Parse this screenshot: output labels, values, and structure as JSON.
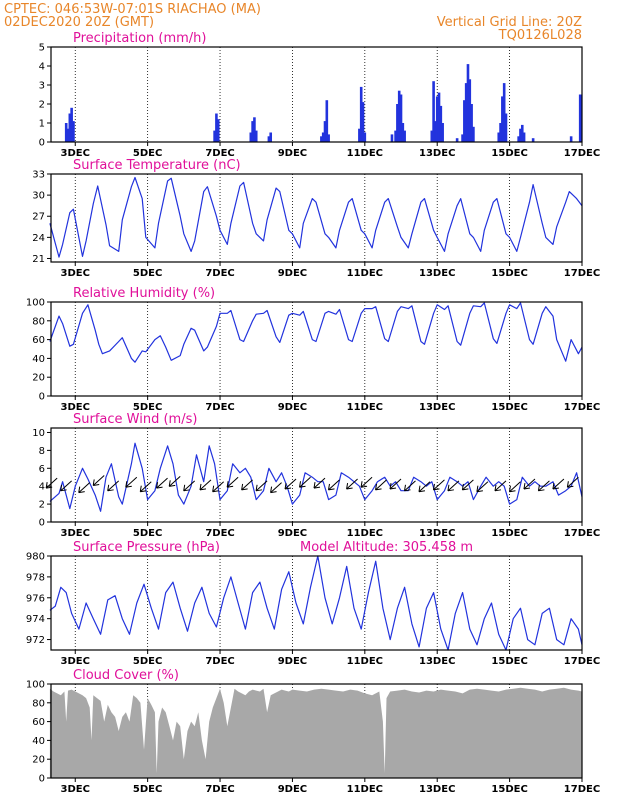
{
  "header": {
    "station_line": "CPTEC:   046:53W-07:01S   RIACHAO (MA)",
    "date_line": "02DEC2020 20Z (GMT)",
    "grid_note": "Vertical Grid Line: 20Z",
    "run_code": "TQ0126L028"
  },
  "colors": {
    "header": "#e8862a",
    "title": "#e0109a",
    "series": "#2233dd",
    "cloud": "#a8a8a8",
    "wind": "#000000"
  },
  "x_axis": {
    "tick_labels": [
      "3DEC",
      "5DEC",
      "7DEC",
      "9DEC",
      "11DEC",
      "13DEC",
      "15DEC",
      "17DEC"
    ],
    "tick_days": [
      3,
      5,
      7,
      9,
      11,
      13,
      15,
      17
    ],
    "day_start": 2.33,
    "day_end": 17.0
  },
  "chart_data": [
    {
      "id": "precip",
      "type": "bar",
      "title": "Precipitation (mm/h)",
      "ylim": [
        0,
        5
      ],
      "yticks": [
        0,
        1,
        2,
        3,
        4,
        5
      ],
      "grid": "dotted-vertical",
      "bars": [
        [
          2.75,
          1.0
        ],
        [
          2.8,
          0.7
        ],
        [
          2.85,
          1.5
        ],
        [
          2.9,
          1.8
        ],
        [
          2.95,
          1.1
        ],
        [
          6.85,
          0.6
        ],
        [
          6.9,
          1.5
        ],
        [
          6.95,
          1.2
        ],
        [
          7.85,
          0.5
        ],
        [
          7.9,
          1.1
        ],
        [
          7.95,
          1.3
        ],
        [
          8.0,
          0.6
        ],
        [
          8.35,
          0.3
        ],
        [
          8.4,
          0.5
        ],
        [
          9.8,
          0.3
        ],
        [
          9.85,
          0.5
        ],
        [
          9.9,
          1.1
        ],
        [
          9.95,
          2.2
        ],
        [
          10.0,
          0.4
        ],
        [
          10.85,
          0.7
        ],
        [
          10.9,
          2.9
        ],
        [
          10.95,
          2.1
        ],
        [
          11.0,
          0.5
        ],
        [
          11.75,
          0.4
        ],
        [
          11.85,
          0.6
        ],
        [
          11.9,
          2.0
        ],
        [
          11.95,
          2.7
        ],
        [
          12.0,
          2.5
        ],
        [
          12.05,
          1.0
        ],
        [
          12.1,
          0.6
        ],
        [
          12.85,
          0.6
        ],
        [
          12.9,
          3.2
        ],
        [
          12.95,
          1.1
        ],
        [
          13.0,
          2.4
        ],
        [
          13.05,
          2.6
        ],
        [
          13.1,
          1.9
        ],
        [
          13.15,
          1.0
        ],
        [
          13.55,
          0.2
        ],
        [
          13.7,
          0.4
        ],
        [
          13.75,
          2.2
        ],
        [
          13.8,
          3.1
        ],
        [
          13.85,
          4.1
        ],
        [
          13.9,
          3.3
        ],
        [
          13.95,
          2.0
        ],
        [
          14.0,
          0.8
        ],
        [
          14.7,
          0.5
        ],
        [
          14.75,
          1.0
        ],
        [
          14.8,
          2.4
        ],
        [
          14.85,
          3.1
        ],
        [
          14.9,
          1.5
        ],
        [
          15.25,
          0.3
        ],
        [
          15.3,
          0.7
        ],
        [
          15.35,
          0.9
        ],
        [
          15.4,
          0.5
        ],
        [
          15.65,
          0.2
        ],
        [
          16.7,
          0.3
        ],
        [
          16.95,
          2.5
        ]
      ]
    },
    {
      "id": "temp",
      "type": "line",
      "title": "Surface Temperature (nC)",
      "ylim": [
        20.5,
        33
      ],
      "yticks": [
        21,
        24,
        27,
        30,
        33
      ],
      "grid": "dotted-vertical",
      "x": [
        2.3,
        2.55,
        2.65,
        2.85,
        2.95,
        3.2,
        3.3,
        3.5,
        3.62,
        3.85,
        3.95,
        4.2,
        4.3,
        4.55,
        4.65,
        4.85,
        4.95,
        5.2,
        5.3,
        5.55,
        5.65,
        5.9,
        6.0,
        6.2,
        6.3,
        6.55,
        6.65,
        6.9,
        7.0,
        7.2,
        7.3,
        7.55,
        7.65,
        7.9,
        8.0,
        8.2,
        8.3,
        8.55,
        8.65,
        8.9,
        9.0,
        9.2,
        9.3,
        9.55,
        9.65,
        9.9,
        10.0,
        10.2,
        10.3,
        10.55,
        10.65,
        10.9,
        11.0,
        11.2,
        11.3,
        11.55,
        11.65,
        11.9,
        12.0,
        12.2,
        12.3,
        12.55,
        12.65,
        12.9,
        13.0,
        13.2,
        13.3,
        13.55,
        13.65,
        13.9,
        14.0,
        14.2,
        14.3,
        14.55,
        14.65,
        14.9,
        15.0,
        15.2,
        15.3,
        15.55,
        15.65,
        15.9,
        16.0,
        16.2,
        16.3,
        16.55,
        16.65,
        16.85,
        17.0
      ],
      "y": [
        26.0,
        21.2,
        23.0,
        27.5,
        28.0,
        21.3,
        23.5,
        28.8,
        31.3,
        25.8,
        22.8,
        22.0,
        26.5,
        31.2,
        32.5,
        29.5,
        24.0,
        22.5,
        26.0,
        32.0,
        32.4,
        27.0,
        24.5,
        22.0,
        23.5,
        30.5,
        31.2,
        27.0,
        25.0,
        23.0,
        26.0,
        31.3,
        31.8,
        26.0,
        24.5,
        23.5,
        26.5,
        31.0,
        30.5,
        25.0,
        24.5,
        22.5,
        26.0,
        29.5,
        29.0,
        24.5,
        24.0,
        22.5,
        25.0,
        29.0,
        29.5,
        25.0,
        24.5,
        22.5,
        25.0,
        29.0,
        29.5,
        25.5,
        24.0,
        22.5,
        24.5,
        29.0,
        29.5,
        25.0,
        24.0,
        22.0,
        24.5,
        28.5,
        29.5,
        24.5,
        24.0,
        22.0,
        25.0,
        29.0,
        29.5,
        24.5,
        24.0,
        22.0,
        24.0,
        29.0,
        31.5,
        26.0,
        24.0,
        23.0,
        25.5,
        29.0,
        30.5,
        29.5,
        28.5
      ]
    },
    {
      "id": "rh",
      "type": "line",
      "title": "Relative Humidity (%)",
      "ylim": [
        0,
        100
      ],
      "yticks": [
        0,
        20,
        40,
        60,
        80,
        100
      ],
      "grid": "dotted-vertical",
      "x": [
        2.3,
        2.55,
        2.65,
        2.85,
        2.95,
        3.2,
        3.35,
        3.55,
        3.65,
        3.75,
        3.95,
        4.2,
        4.3,
        4.55,
        4.65,
        4.85,
        4.95,
        5.2,
        5.35,
        5.5,
        5.65,
        5.9,
        6.0,
        6.2,
        6.3,
        6.55,
        6.65,
        6.9,
        7.0,
        7.2,
        7.3,
        7.55,
        7.65,
        7.9,
        8.0,
        8.2,
        8.3,
        8.55,
        8.65,
        8.9,
        9.0,
        9.2,
        9.3,
        9.55,
        9.65,
        9.9,
        10.0,
        10.2,
        10.3,
        10.55,
        10.65,
        10.9,
        11.0,
        11.2,
        11.3,
        11.55,
        11.65,
        11.9,
        12.0,
        12.2,
        12.3,
        12.55,
        12.65,
        12.9,
        13.0,
        13.2,
        13.3,
        13.55,
        13.65,
        13.9,
        14.0,
        14.2,
        14.3,
        14.55,
        14.65,
        14.9,
        15.0,
        15.2,
        15.3,
        15.55,
        15.65,
        15.9,
        16.0,
        16.2,
        16.3,
        16.55,
        16.7,
        16.9,
        17.0
      ],
      "y": [
        58,
        85,
        77,
        53,
        55,
        88,
        97,
        70,
        55,
        45,
        48,
        58,
        62,
        40,
        36,
        48,
        47,
        60,
        64,
        52,
        38,
        43,
        55,
        72,
        70,
        48,
        52,
        74,
        88,
        88,
        91,
        60,
        58,
        80,
        87,
        88,
        91,
        63,
        57,
        86,
        88,
        86,
        90,
        60,
        58,
        88,
        90,
        87,
        92,
        60,
        58,
        88,
        93,
        93,
        95,
        61,
        58,
        90,
        95,
        93,
        96,
        58,
        55,
        88,
        97,
        92,
        96,
        58,
        54,
        88,
        96,
        95,
        99,
        61,
        56,
        88,
        97,
        93,
        99,
        60,
        55,
        88,
        95,
        85,
        60,
        37,
        60,
        45,
        52
      ]
    },
    {
      "id": "wind",
      "type": "line",
      "title": "Surface Wind (m/s)",
      "ylim": [
        0,
        10.5
      ],
      "yticks": [
        0,
        2,
        4,
        6,
        8,
        10
      ],
      "grid": "dotted-vertical",
      "x": [
        2.3,
        2.55,
        2.65,
        2.85,
        3.0,
        3.2,
        3.35,
        3.55,
        3.7,
        3.85,
        4.0,
        4.2,
        4.3,
        4.55,
        4.65,
        4.85,
        5.0,
        5.2,
        5.35,
        5.55,
        5.7,
        5.85,
        6.0,
        6.2,
        6.35,
        6.55,
        6.7,
        6.85,
        7.0,
        7.2,
        7.35,
        7.55,
        7.7,
        7.85,
        8.0,
        8.2,
        8.35,
        8.55,
        8.7,
        8.85,
        9.0,
        9.2,
        9.35,
        9.55,
        9.7,
        9.85,
        10.0,
        10.2,
        10.35,
        10.55,
        10.7,
        10.85,
        11.0,
        11.2,
        11.35,
        11.55,
        11.7,
        11.85,
        12.0,
        12.2,
        12.35,
        12.55,
        12.7,
        12.85,
        13.0,
        13.2,
        13.35,
        13.55,
        13.7,
        13.85,
        14.0,
        14.2,
        14.35,
        14.55,
        14.7,
        14.85,
        15.0,
        15.2,
        15.35,
        15.55,
        15.7,
        15.85,
        16.0,
        16.2,
        16.35,
        16.55,
        16.7,
        16.85,
        17.0
      ],
      "y": [
        2.3,
        3.2,
        4.5,
        1.5,
        4.0,
        6.0,
        4.8,
        3.0,
        1.2,
        5.0,
        6.5,
        2.8,
        2.0,
        6.5,
        8.8,
        6.0,
        2.5,
        3.5,
        6.0,
        8.5,
        6.5,
        3.0,
        2.0,
        4.0,
        7.5,
        4.5,
        8.5,
        6.5,
        2.5,
        3.5,
        6.5,
        5.5,
        6.0,
        5.0,
        2.5,
        3.5,
        6.0,
        4.5,
        5.5,
        4.0,
        2.0,
        3.0,
        5.5,
        5.0,
        4.5,
        4.5,
        2.5,
        3.0,
        5.5,
        5.0,
        4.5,
        4.0,
        2.5,
        3.5,
        4.5,
        5.0,
        4.0,
        4.5,
        3.5,
        3.5,
        5.0,
        4.5,
        4.0,
        4.5,
        2.5,
        3.5,
        5.0,
        4.5,
        4.0,
        4.5,
        2.5,
        4.0,
        5.0,
        4.0,
        4.5,
        4.0,
        2.0,
        2.5,
        5.0,
        4.0,
        4.5,
        4.0,
        4.0,
        4.5,
        3.0,
        3.5,
        4.0,
        5.5,
        2.8
      ],
      "vectors": [
        [
          2.5,
          4.9
        ],
        [
          2.9,
          4.6
        ],
        [
          3.4,
          4.4
        ],
        [
          3.8,
          5.2
        ],
        [
          4.2,
          4.6
        ],
        [
          4.7,
          5.0
        ],
        [
          5.1,
          4.5
        ],
        [
          5.55,
          4.9
        ],
        [
          5.9,
          5.1
        ],
        [
          6.3,
          4.6
        ],
        [
          6.75,
          4.7
        ],
        [
          7.1,
          4.5
        ],
        [
          7.5,
          5.0
        ],
        [
          7.9,
          4.7
        ],
        [
          8.3,
          4.6
        ],
        [
          8.7,
          4.4
        ],
        [
          9.1,
          4.8
        ],
        [
          9.5,
          5.0
        ],
        [
          9.9,
          4.9
        ],
        [
          10.3,
          4.7
        ],
        [
          10.8,
          4.8
        ],
        [
          11.2,
          5.0
        ],
        [
          11.6,
          4.7
        ],
        [
          12.0,
          4.8
        ],
        [
          12.4,
          4.6
        ],
        [
          12.8,
          4.5
        ],
        [
          13.2,
          4.7
        ],
        [
          13.6,
          4.6
        ],
        [
          14.0,
          4.7
        ],
        [
          14.4,
          4.5
        ],
        [
          14.9,
          4.6
        ],
        [
          15.3,
          4.5
        ],
        [
          15.7,
          4.8
        ],
        [
          16.1,
          4.6
        ],
        [
          16.5,
          4.8
        ],
        [
          16.9,
          5.0
        ]
      ]
    },
    {
      "id": "pressure",
      "type": "line",
      "title": "Surface Pressure (hPa)",
      "annotation": "Model Altitude: 305.458  m",
      "ylim": [
        971.0,
        980.0
      ],
      "yticks": [
        972,
        974,
        976,
        978,
        980
      ],
      "grid": "dotted-vertical",
      "x": [
        2.3,
        2.45,
        2.6,
        2.75,
        2.9,
        3.1,
        3.3,
        3.5,
        3.7,
        3.9,
        4.1,
        4.3,
        4.5,
        4.7,
        4.9,
        5.1,
        5.3,
        5.5,
        5.7,
        5.9,
        6.1,
        6.3,
        6.5,
        6.7,
        6.9,
        7.1,
        7.3,
        7.5,
        7.7,
        7.9,
        8.1,
        8.3,
        8.5,
        8.7,
        8.9,
        9.1,
        9.3,
        9.5,
        9.7,
        9.9,
        10.1,
        10.3,
        10.5,
        10.7,
        10.9,
        11.1,
        11.3,
        11.5,
        11.7,
        11.9,
        12.1,
        12.3,
        12.5,
        12.7,
        12.9,
        13.1,
        13.3,
        13.5,
        13.7,
        13.9,
        14.1,
        14.3,
        14.5,
        14.7,
        14.9,
        15.1,
        15.3,
        15.5,
        15.7,
        15.9,
        16.1,
        16.3,
        16.5,
        16.7,
        16.9,
        17.0
      ],
      "y": [
        974.8,
        975.2,
        977.0,
        976.5,
        974.5,
        973.0,
        975.5,
        974.0,
        972.5,
        975.8,
        976.2,
        974.0,
        972.5,
        975.5,
        977.3,
        975.0,
        973.0,
        976.5,
        977.5,
        975.0,
        972.8,
        975.5,
        977.0,
        974.5,
        973.2,
        976.0,
        978.0,
        975.5,
        973.0,
        976.5,
        977.5,
        975.0,
        973.0,
        976.8,
        978.5,
        975.5,
        973.5,
        977.0,
        980.0,
        976.0,
        973.5,
        976.0,
        979.0,
        975.0,
        973.0,
        976.5,
        979.5,
        975.0,
        972.0,
        975.0,
        977.0,
        973.5,
        971.3,
        975.0,
        976.5,
        973.0,
        971.0,
        974.5,
        976.5,
        973.0,
        971.5,
        974.0,
        975.5,
        972.5,
        971.0,
        974.0,
        975.0,
        972.0,
        971.5,
        974.5,
        975.0,
        972.0,
        971.5,
        974.0,
        973.0,
        971.5
      ]
    },
    {
      "id": "cloud",
      "type": "area",
      "title": "Cloud Cover (%)",
      "ylim": [
        0,
        100
      ],
      "yticks": [
        0,
        20,
        40,
        60,
        80,
        100
      ],
      "grid": "dotted-vertical",
      "x": [
        2.3,
        2.4,
        2.5,
        2.6,
        2.7,
        2.75,
        2.8,
        2.9,
        3.0,
        3.1,
        3.2,
        3.3,
        3.4,
        3.45,
        3.5,
        3.6,
        3.7,
        3.8,
        3.9,
        4.0,
        4.1,
        4.2,
        4.3,
        4.4,
        4.5,
        4.6,
        4.7,
        4.8,
        4.9,
        5.0,
        5.1,
        5.2,
        5.25,
        5.3,
        5.4,
        5.5,
        5.6,
        5.7,
        5.8,
        5.9,
        6.0,
        6.1,
        6.2,
        6.3,
        6.4,
        6.5,
        6.6,
        6.7,
        6.8,
        6.9,
        7.0,
        7.1,
        7.2,
        7.3,
        7.4,
        7.5,
        7.6,
        7.7,
        7.8,
        7.9,
        8.0,
        8.1,
        8.2,
        8.3,
        8.4,
        8.5,
        8.6,
        8.7,
        8.8,
        8.9,
        9.0,
        9.2,
        9.4,
        9.6,
        9.8,
        10.0,
        10.2,
        10.4,
        10.6,
        10.8,
        11.0,
        11.2,
        11.4,
        11.5,
        11.55,
        11.6,
        11.7,
        11.9,
        12.1,
        12.3,
        12.5,
        12.7,
        12.9,
        13.1,
        13.3,
        13.5,
        13.7,
        13.9,
        14.1,
        14.3,
        14.5,
        14.7,
        14.9,
        15.1,
        15.3,
        15.5,
        15.7,
        15.9,
        16.1,
        16.3,
        16.5,
        16.7,
        16.9,
        17.0
      ],
      "y": [
        95,
        92,
        90,
        88,
        92,
        60,
        93,
        94,
        92,
        90,
        88,
        85,
        75,
        40,
        88,
        85,
        82,
        60,
        78,
        70,
        65,
        50,
        65,
        70,
        60,
        88,
        85,
        80,
        30,
        85,
        78,
        70,
        5,
        60,
        75,
        70,
        55,
        40,
        60,
        55,
        20,
        50,
        60,
        55,
        70,
        40,
        20,
        60,
        75,
        85,
        95,
        80,
        55,
        75,
        95,
        92,
        90,
        88,
        92,
        94,
        93,
        92,
        95,
        70,
        88,
        90,
        92,
        94,
        93,
        92,
        94,
        93,
        92,
        94,
        95,
        94,
        93,
        92,
        94,
        93,
        90,
        88,
        92,
        60,
        5,
        85,
        92,
        93,
        94,
        92,
        91,
        93,
        92,
        94,
        93,
        92,
        90,
        94,
        95,
        94,
        93,
        92,
        94,
        95,
        96,
        95,
        94,
        92,
        94,
        95,
        96,
        94,
        93,
        92
      ]
    }
  ]
}
